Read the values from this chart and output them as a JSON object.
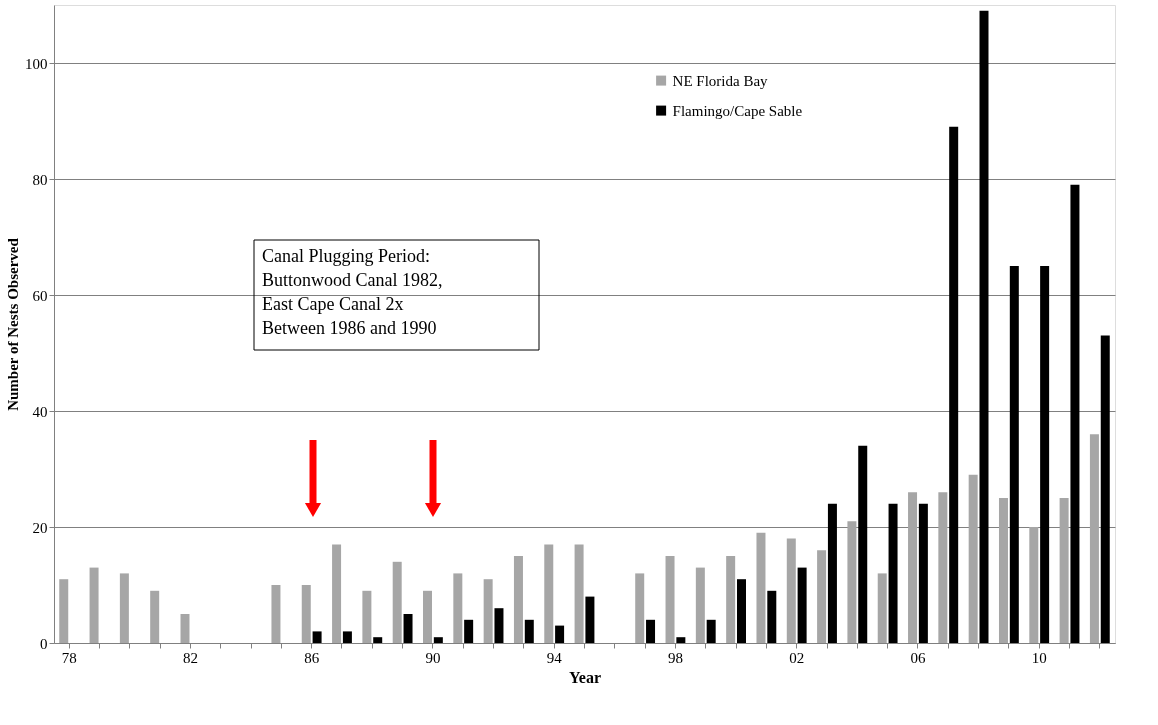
{
  "chart_data": {
    "type": "bar",
    "xlabel": "Year",
    "ylabel": "Number of Nests Observed",
    "categories": [
      "78",
      null,
      null,
      null,
      "82",
      null,
      null,
      null,
      "86",
      null,
      null,
      null,
      "90",
      null,
      null,
      null,
      "94",
      null,
      null,
      null,
      "98",
      null,
      null,
      null,
      "02",
      null,
      null,
      null,
      "06",
      null,
      null,
      null,
      "10",
      null,
      null
    ],
    "series": [
      {
        "name": "NE Florida Bay",
        "color": "#a6a6a6",
        "values": [
          11,
          13,
          12,
          9,
          5,
          null,
          null,
          10,
          10,
          17,
          9,
          14,
          9,
          12,
          11,
          15,
          17,
          17,
          null,
          12,
          15,
          13,
          15,
          19,
          18,
          16,
          21,
          12,
          26,
          26,
          29,
          25,
          20,
          25,
          36
        ]
      },
      {
        "name": "Flamingo/Cape Sable",
        "color": "#000000",
        "values": [
          null,
          null,
          null,
          null,
          null,
          null,
          null,
          null,
          2,
          2,
          1,
          5,
          1,
          4,
          6,
          4,
          3,
          8,
          null,
          4,
          1,
          4,
          11,
          9,
          13,
          24,
          34,
          24,
          24,
          89,
          109,
          65,
          65,
          79,
          53
        ]
      }
    ],
    "ylim": [
      0,
      110
    ],
    "yticks": [
      0,
      20,
      40,
      60,
      80,
      100
    ],
    "grid": "y",
    "legend": "top right",
    "annotations": [
      "Canal Plugging Period:\nButtonwood Canal 1982,\nEast Cape Canal 2x\nBetween 1986 and 1990"
    ]
  }
}
